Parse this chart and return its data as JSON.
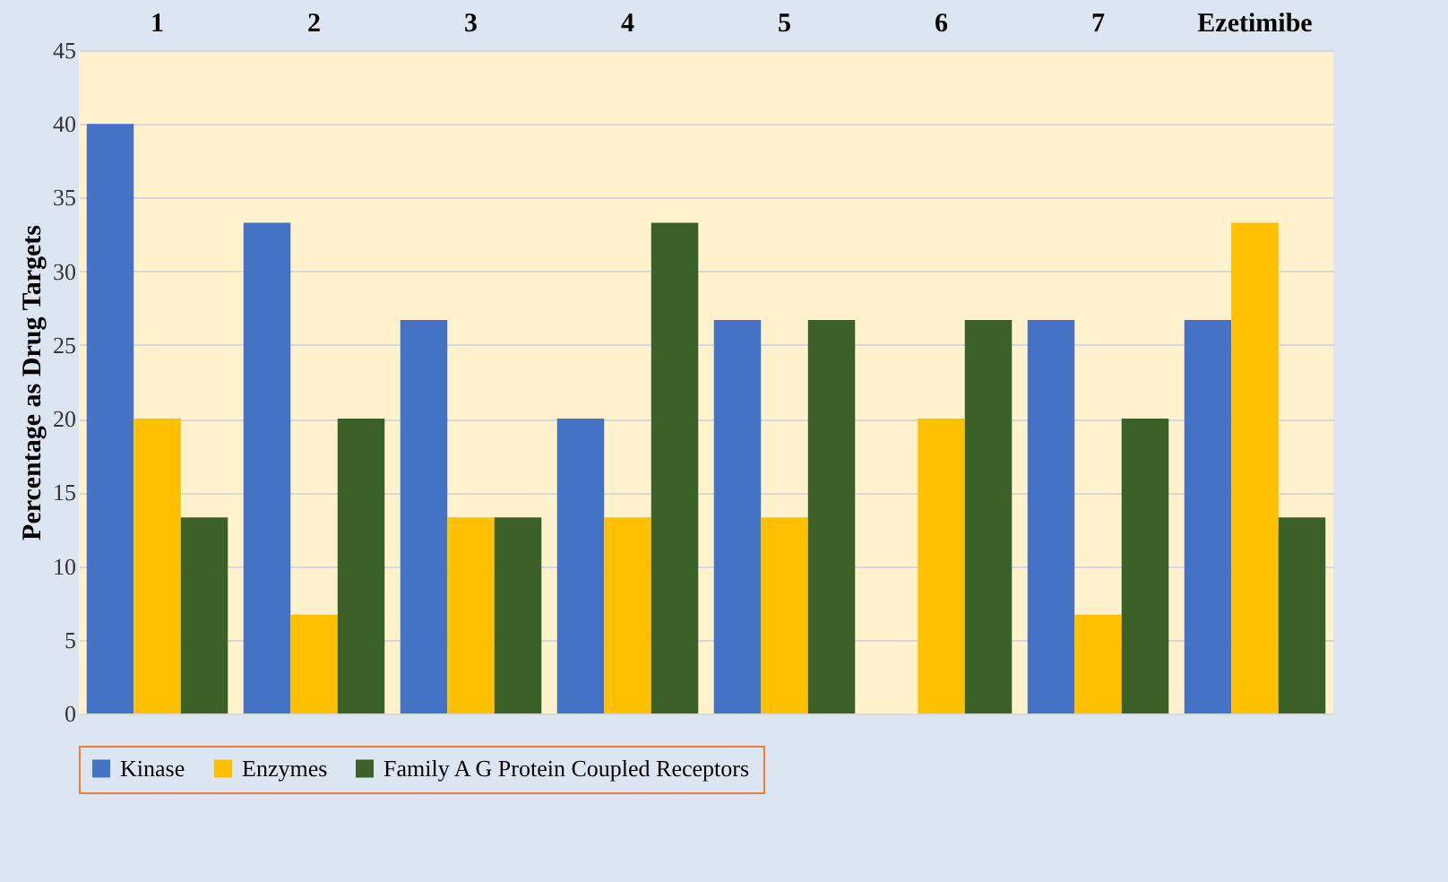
{
  "chart_data": {
    "type": "bar",
    "ylabel": "Percentage as Drug Targets",
    "categories": [
      "1",
      "2",
      "3",
      "4",
      "5",
      "6",
      "7",
      "Ezetimibe"
    ],
    "series": [
      {
        "name": "Kinase",
        "color": "#4472c4",
        "values": [
          40,
          33.3,
          26.7,
          20,
          26.7,
          0,
          26.7,
          26.7
        ]
      },
      {
        "name": "Enzymes",
        "color": "#ffc000",
        "values": [
          20,
          6.7,
          13.3,
          13.3,
          13.3,
          20,
          6.7,
          33.3
        ]
      },
      {
        "name": "Family A G Protein Coupled Receptors",
        "color": "#3b6128",
        "values": [
          13.3,
          20,
          13.3,
          33.3,
          26.7,
          26.7,
          20,
          13.3
        ]
      }
    ],
    "ylim": [
      0,
      45
    ],
    "yticks": [
      0,
      5,
      10,
      15,
      20,
      25,
      30,
      35,
      40,
      45
    ],
    "grid": "y",
    "legend": "bottom"
  }
}
